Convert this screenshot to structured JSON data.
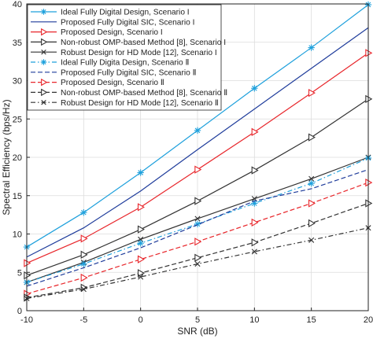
{
  "chart_data": {
    "type": "line",
    "xlabel": "SNR (dB)",
    "ylabel": "Spectral Efficiency (bps/Hz)",
    "xlim": [
      -10,
      20
    ],
    "ylim": [
      0,
      40
    ],
    "x_ticks": [
      "-10",
      "-5",
      "0",
      "5",
      "10",
      "15",
      "20"
    ],
    "y_ticks": [
      "0",
      "5",
      "10",
      "15",
      "20",
      "25",
      "30",
      "35",
      "40"
    ],
    "grid": true,
    "legend_position": "top-left",
    "x": [
      -10,
      -5,
      0,
      5,
      10,
      15,
      20
    ],
    "series": [
      {
        "name": "Ideal Fully Digital Design, Scenario I",
        "color": "#1ea0dc",
        "dash": "solid",
        "marker": "star",
        "values": [
          8.3,
          12.8,
          18.0,
          23.5,
          29.0,
          34.3,
          39.9
        ]
      },
      {
        "name": "Proposed Fully Digital SIC, Scenario I",
        "color": "#1f3c9b",
        "dash": "solid",
        "marker": "none",
        "values": [
          7.0,
          10.8,
          15.6,
          21.0,
          26.3,
          31.6,
          36.9
        ]
      },
      {
        "name": "Proposed Design, Scenario I",
        "color": "#e8262b",
        "dash": "solid",
        "marker": "triangle-right",
        "values": [
          6.2,
          9.4,
          13.5,
          18.4,
          23.3,
          28.4,
          33.6
        ]
      },
      {
        "name": "Non-robust OMP-based Method [8], Scenario I",
        "color": "#333333",
        "dash": "solid",
        "marker": "triangle-right",
        "values": [
          4.6,
          7.3,
          10.6,
          14.3,
          18.3,
          22.6,
          27.6
        ]
      },
      {
        "name": "Robust Design for HD Mode [12], Scenario I",
        "color": "#333333",
        "dash": "solid",
        "marker": "x",
        "values": [
          3.7,
          6.3,
          9.3,
          12.0,
          14.6,
          17.2,
          20.0
        ]
      },
      {
        "name": "Ideal Fully Digita Design, Scenario Ⅱ",
        "color": "#1ea0dc",
        "dash": "dashdot",
        "marker": "star",
        "values": [
          3.7,
          6.1,
          8.8,
          11.3,
          14.0,
          16.6,
          19.9
        ]
      },
      {
        "name": "Proposed Fully Digital SIC, Scenario Ⅱ",
        "color": "#1f3c9b",
        "dash": "dashed",
        "marker": "none",
        "values": [
          3.2,
          5.6,
          8.2,
          11.2,
          14.3,
          15.9,
          18.4
        ]
      },
      {
        "name": "Proposed Design, Scenario Ⅱ",
        "color": "#e8262b",
        "dash": "dashed",
        "marker": "triangle-right",
        "values": [
          2.2,
          4.3,
          6.7,
          9.0,
          11.5,
          14.0,
          16.7
        ]
      },
      {
        "name": "Non-robust OMP-based Method [8], Scenario Ⅱ",
        "color": "#333333",
        "dash": "dashed",
        "marker": "triangle-right",
        "values": [
          1.7,
          3.0,
          4.9,
          6.9,
          8.9,
          11.4,
          14.0
        ]
      },
      {
        "name": "Robust Design for HD Mode [12], Scenario Ⅱ",
        "color": "#333333",
        "dash": "dashdot",
        "marker": "x",
        "values": [
          1.6,
          2.8,
          4.4,
          6.1,
          7.7,
          9.2,
          10.8
        ]
      }
    ]
  }
}
